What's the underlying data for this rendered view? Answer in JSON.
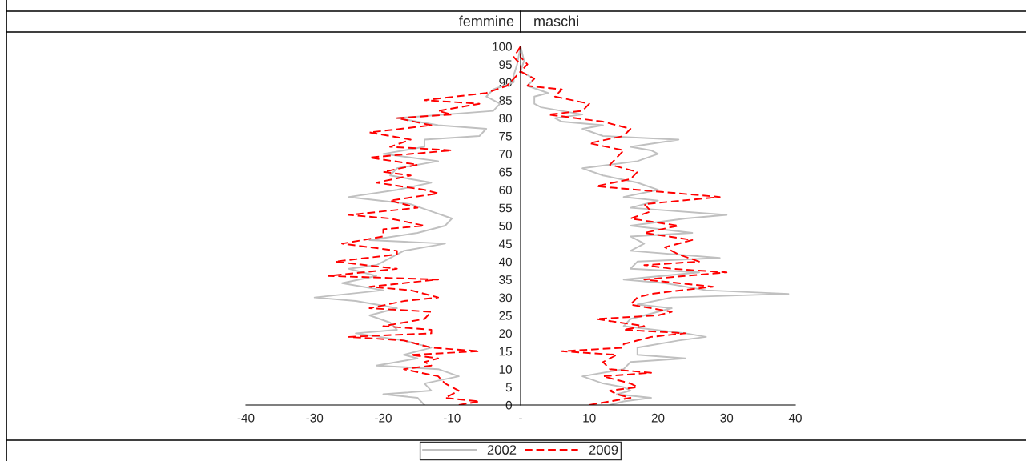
{
  "chart_data": {
    "type": "line",
    "annotations": [
      "femmine",
      "maschi"
    ],
    "xlim": [
      -40,
      40
    ],
    "xticks": [
      -40,
      -30,
      -20,
      -10,
      {
        "value": 0,
        "label": "-"
      },
      10,
      20,
      30,
      40
    ],
    "ylim": [
      0,
      100
    ],
    "yticks": [
      0,
      5,
      10,
      15,
      20,
      25,
      30,
      35,
      40,
      45,
      50,
      55,
      60,
      65,
      70,
      75,
      80,
      85,
      90,
      95,
      100
    ],
    "grid": false,
    "legend": "bottom",
    "series": [
      {
        "name": "2002",
        "color": "#c0c0c0",
        "line_style": "solid",
        "x": [
          -14,
          -15,
          -20,
          -13,
          -14,
          -9,
          -12,
          -21,
          -15,
          -17,
          -13,
          -17,
          -24,
          -18,
          -19,
          -22,
          -18,
          -24,
          -30,
          -20,
          -26,
          -21,
          -25,
          -21,
          -19,
          -17,
          -11,
          -22,
          -15,
          -11,
          -10,
          -13,
          -16,
          -25,
          -18,
          -13,
          -19,
          -18,
          -12,
          -20,
          -14,
          -14,
          -6,
          -5,
          -12,
          -18,
          -4,
          -3,
          -5,
          -4,
          -1,
          -1,
          -0.5,
          0
        ],
        "values": [
          0,
          2,
          3,
          4,
          6,
          8,
          10,
          11,
          13,
          14,
          16,
          18,
          20,
          21,
          23,
          25,
          27,
          29,
          30,
          32,
          34,
          36,
          38,
          39,
          41,
          43,
          45,
          46,
          48,
          50,
          52,
          54,
          56,
          58,
          60,
          62,
          64,
          66,
          68,
          70,
          72,
          74,
          75,
          77,
          78,
          80,
          82,
          84,
          86,
          88,
          90,
          92,
          95,
          100
        ]
      },
      {
        "color": "#c0c0c0",
        "line_style": "solid",
        "x": [
          13,
          15,
          19,
          14,
          16,
          15,
          12,
          9,
          15,
          16,
          24,
          17,
          17,
          23,
          27,
          24,
          15,
          16,
          20,
          22,
          17,
          22,
          39,
          27,
          21,
          15,
          26,
          16,
          17,
          29,
          16,
          18,
          16,
          25,
          16,
          24,
          30,
          16,
          20,
          15,
          20,
          17,
          12,
          9,
          17,
          20,
          19,
          16,
          23,
          12,
          9,
          12,
          6,
          5,
          9,
          3,
          2,
          2,
          4,
          1,
          2,
          0,
          0.5,
          0
        ],
        "values": [
          0,
          1,
          2,
          3,
          4,
          5,
          6,
          8,
          10,
          12,
          13,
          14,
          16,
          18,
          19,
          20,
          22,
          24,
          26,
          27,
          28,
          30,
          31,
          32,
          34,
          35,
          37,
          38,
          40,
          41,
          43,
          45,
          47,
          48,
          50,
          52,
          53,
          55,
          57,
          58,
          60,
          62,
          64,
          66,
          68,
          70,
          71,
          72,
          74,
          75,
          77,
          78,
          79,
          80,
          81,
          83,
          84,
          86,
          87,
          89,
          91,
          93,
          96,
          100
        ]
      },
      {
        "name": "2009",
        "color": "#ff0000",
        "line_style": "dashed",
        "x": [
          -9,
          -6,
          -11,
          -10,
          -9,
          -10,
          -11,
          -12,
          -17,
          -13,
          -14,
          -12,
          -16,
          -6,
          -13,
          -17,
          -25,
          -13,
          -13,
          -20,
          -14,
          -13,
          -22,
          -17,
          -12,
          -16,
          -22,
          -12,
          -28,
          -18,
          -27,
          -18,
          -18,
          -26,
          -20,
          -20,
          -14,
          -19,
          -25,
          -15,
          -19,
          -12,
          -14,
          -21,
          -16,
          -20,
          -15,
          -22,
          -10,
          -19,
          -16,
          -22,
          -13,
          -18,
          -10,
          -12,
          -6,
          -14,
          -5,
          -2,
          -1,
          0,
          0,
          -1,
          0
        ],
        "values": [
          0,
          1,
          2,
          3,
          4,
          5,
          6,
          8,
          10,
          11,
          12,
          13,
          14,
          15,
          16,
          18,
          19,
          20,
          21,
          22,
          24,
          26,
          27,
          29,
          30,
          32,
          33,
          35,
          36,
          38,
          40,
          42,
          43,
          45,
          47,
          49,
          50,
          52,
          53,
          55,
          57,
          59,
          60,
          62,
          64,
          65,
          67,
          69,
          71,
          72,
          74,
          76,
          78,
          80,
          81,
          82,
          84,
          85,
          87,
          89,
          91,
          93,
          95,
          97,
          100
        ]
      },
      {
        "color": "#ff0000",
        "line_style": "dashed",
        "x": [
          10,
          13,
          16,
          14,
          13,
          17,
          16,
          12,
          19,
          13,
          12,
          14,
          6,
          15,
          15,
          19,
          24,
          15,
          18,
          11,
          20,
          22,
          16,
          17,
          19,
          28,
          18,
          30,
          22,
          18,
          26,
          23,
          21,
          25,
          18,
          23,
          16,
          19,
          18,
          29,
          17,
          11,
          16,
          17,
          13,
          14,
          15,
          10,
          15,
          16,
          12,
          4,
          9,
          10,
          5,
          6,
          1,
          2,
          0,
          1,
          0,
          0
        ],
        "values": [
          0,
          1,
          2,
          3,
          4,
          5,
          6,
          8,
          9,
          10,
          12,
          14,
          15,
          16,
          17,
          19,
          20,
          21,
          22,
          24,
          25,
          26,
          28,
          30,
          31,
          33,
          35,
          37,
          38,
          39,
          40,
          42,
          44,
          46,
          48,
          50,
          52,
          54,
          56,
          58,
          60,
          61,
          63,
          65,
          67,
          69,
          71,
          73,
          75,
          77,
          79,
          81,
          82,
          84,
          86,
          88,
          89,
          91,
          93,
          95,
          97,
          100
        ]
      }
    ]
  }
}
